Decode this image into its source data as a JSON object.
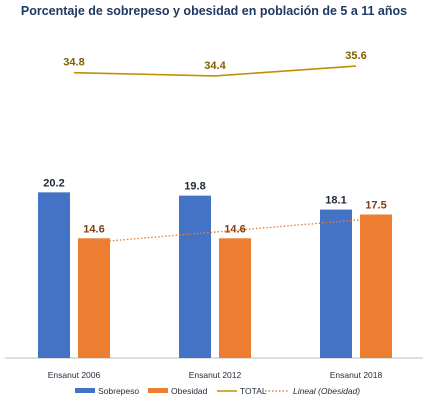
{
  "chart_data": {
    "type": "bar",
    "title": "Porcentaje de sobrepeso y obesidad en población de 5 a 11 años",
    "categories": [
      "Ensanut 2006",
      "Ensanut 2012",
      "Ensanut 2018"
    ],
    "series": [
      {
        "name": "Sobrepeso",
        "type": "bar",
        "color": "#4472C4",
        "values": [
          20.2,
          19.8,
          18.1
        ],
        "labels": [
          "20.2",
          "19.8",
          "18.1"
        ]
      },
      {
        "name": "Obesidad",
        "type": "bar",
        "color": "#ED7D31",
        "values": [
          14.6,
          14.6,
          17.5
        ],
        "labels": [
          "14.6",
          "14.6",
          "17.5"
        ]
      },
      {
        "name": "TOTAL",
        "type": "line",
        "color": "#BF9000",
        "values": [
          34.8,
          34.4,
          35.6
        ],
        "labels": [
          "34.8",
          "34.4",
          "35.6"
        ]
      },
      {
        "name": "Lineal (Obesidad)",
        "type": "trendline",
        "color": "#ED7D31",
        "style": "dotted"
      }
    ],
    "ylim": [
      0,
      42
    ],
    "grid": false,
    "legend": "bottom",
    "colors": {
      "title": "#1F3864",
      "bar_label": "#1F2937",
      "obesidad_label": "#7F3F10",
      "total_label": "#806000",
      "axis": "#BFBFBF"
    }
  }
}
